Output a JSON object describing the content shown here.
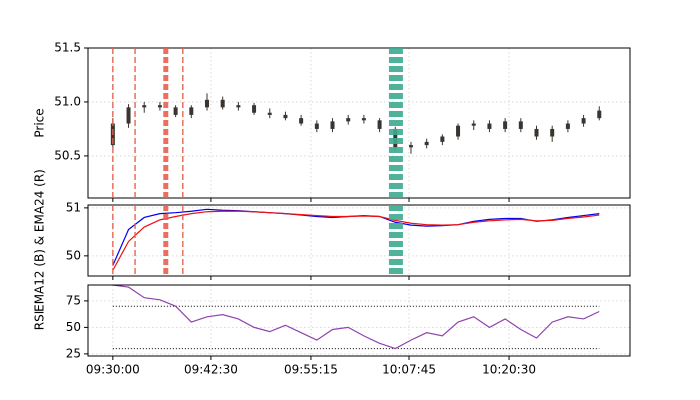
{
  "chart_data": [
    {
      "type": "candlestick",
      "ylabel": "Price",
      "x": [
        "09:30:00",
        "09:32:00",
        "09:34:00",
        "09:36:00",
        "09:38:00",
        "09:40:00",
        "09:42:00",
        "09:44:00",
        "09:46:00",
        "09:48:00",
        "09:50:00",
        "09:52:00",
        "09:54:00",
        "09:56:00",
        "09:58:00",
        "10:00:00",
        "10:02:00",
        "10:04:00",
        "10:06:00",
        "10:08:00",
        "10:10:00",
        "10:12:00",
        "10:14:00",
        "10:16:00",
        "10:18:00",
        "10:20:00",
        "10:22:00",
        "10:24:00",
        "10:26:00",
        "10:28:00",
        "10:30:00",
        "10:32:00"
      ],
      "open": [
        50.6,
        50.8,
        50.95,
        50.97,
        50.95,
        50.88,
        50.95,
        51.02,
        50.95,
        50.97,
        50.9,
        50.88,
        50.85,
        50.8,
        50.75,
        50.82,
        50.85,
        50.83,
        50.75,
        50.58,
        50.6,
        50.63,
        50.68,
        50.78,
        50.8,
        50.75,
        50.82,
        50.75,
        50.68,
        50.75,
        50.8,
        50.85
      ],
      "high": [
        50.85,
        50.98,
        51.0,
        51.0,
        50.97,
        50.97,
        51.08,
        51.05,
        51.0,
        50.99,
        50.94,
        50.91,
        50.88,
        50.83,
        50.85,
        50.88,
        50.88,
        50.85,
        50.77,
        50.63,
        50.66,
        50.7,
        50.8,
        50.83,
        50.83,
        50.85,
        50.85,
        50.78,
        50.78,
        50.83,
        50.88,
        50.96
      ],
      "low": [
        50.58,
        50.76,
        50.9,
        50.92,
        50.86,
        50.85,
        50.92,
        50.93,
        50.92,
        50.88,
        50.85,
        50.83,
        50.78,
        50.72,
        50.72,
        50.79,
        50.8,
        50.72,
        50.55,
        50.52,
        50.57,
        50.6,
        50.65,
        50.74,
        50.72,
        50.72,
        50.72,
        50.65,
        50.63,
        50.72,
        50.77,
        50.83
      ],
      "close": [
        50.8,
        50.95,
        50.97,
        50.95,
        50.88,
        50.95,
        51.02,
        50.95,
        50.97,
        50.9,
        50.88,
        50.85,
        50.8,
        50.75,
        50.82,
        50.85,
        50.83,
        50.75,
        50.58,
        50.6,
        50.63,
        50.68,
        50.78,
        50.8,
        50.75,
        50.82,
        50.75,
        50.68,
        50.75,
        50.8,
        50.85,
        50.92
      ],
      "color": "#3a3530",
      "vlines": [
        {
          "x": "09:30:00",
          "color": "#e8604c",
          "width": 1.5
        },
        {
          "x": "09:32:50",
          "color": "#e8604c",
          "width": 1.5
        },
        {
          "x": "09:36:45",
          "color": "#e8604c",
          "width": 5
        },
        {
          "x": "09:38:55",
          "color": "#e8604c",
          "width": 1.5
        },
        {
          "x": "10:06:05",
          "color": "#3dab91",
          "width": 14
        }
      ],
      "xlim": [
        "09:26:50",
        "10:35:55"
      ],
      "xticks": [
        "09:30:00",
        "09:42:30",
        "09:55:15",
        "10:07:45",
        "10:20:30"
      ],
      "ylim": [
        50.11,
        51.5
      ],
      "yticks": [
        {
          "value": 50.5,
          "label": "50.5"
        },
        {
          "value": 51.0,
          "label": "51.0"
        },
        {
          "value": 51.5,
          "label": "51.5"
        }
      ],
      "grid": true
    },
    {
      "type": "line",
      "ylabel": "EMA12 (B) & EMA24 (R)",
      "x": [
        "09:30:00",
        "09:32:00",
        "09:34:00",
        "09:36:00",
        "09:38:00",
        "09:40:00",
        "09:42:00",
        "09:44:00",
        "09:46:00",
        "09:48:00",
        "09:50:00",
        "09:52:00",
        "09:54:00",
        "09:56:00",
        "09:58:00",
        "10:00:00",
        "10:02:00",
        "10:04:00",
        "10:06:00",
        "10:08:00",
        "10:10:00",
        "10:12:00",
        "10:14:00",
        "10:16:00",
        "10:18:00",
        "10:20:00",
        "10:22:00",
        "10:24:00",
        "10:26:00",
        "10:28:00",
        "10:30:00",
        "10:32:00"
      ],
      "series": [
        {
          "color": "#0000ee",
          "values": [
            49.8,
            50.55,
            50.8,
            50.88,
            50.9,
            50.93,
            50.97,
            50.95,
            50.94,
            50.92,
            50.9,
            50.88,
            50.85,
            50.82,
            50.8,
            50.82,
            50.84,
            50.82,
            50.7,
            50.64,
            50.62,
            50.63,
            50.65,
            50.72,
            50.76,
            50.78,
            50.78,
            50.72,
            50.75,
            50.8,
            50.84,
            50.88
          ]
        },
        {
          "color": "#ee1010",
          "values": [
            49.7,
            50.3,
            50.6,
            50.75,
            50.82,
            50.88,
            50.92,
            50.93,
            50.93,
            50.92,
            50.9,
            50.88,
            50.86,
            50.84,
            50.82,
            50.82,
            50.83,
            50.82,
            50.74,
            50.68,
            50.65,
            50.64,
            50.65,
            50.7,
            50.73,
            50.75,
            50.76,
            50.73,
            50.74,
            50.78,
            50.81,
            50.85
          ]
        }
      ],
      "xlim": [
        "09:26:50",
        "10:35:55"
      ],
      "xticks": [
        "09:30:00",
        "09:42:30",
        "09:55:15",
        "10:07:45",
        "10:20:30"
      ],
      "ylim": [
        49.58,
        51.06
      ],
      "yticks": [
        50,
        51
      ],
      "grid": true
    },
    {
      "type": "line",
      "ylabel": "RSI",
      "x": [
        "09:30:00",
        "09:32:00",
        "09:34:00",
        "09:36:00",
        "09:38:00",
        "09:40:00",
        "09:42:00",
        "09:44:00",
        "09:46:00",
        "09:48:00",
        "09:50:00",
        "09:52:00",
        "09:54:00",
        "09:56:00",
        "09:58:00",
        "10:00:00",
        "10:02:00",
        "10:04:00",
        "10:06:00",
        "10:08:00",
        "10:10:00",
        "10:12:00",
        "10:14:00",
        "10:16:00",
        "10:18:00",
        "10:20:00",
        "10:22:00",
        "10:24:00",
        "10:26:00",
        "10:28:00",
        "10:30:00",
        "10:32:00"
      ],
      "series": [
        {
          "color": "#8e44ad",
          "values": [
            90,
            88,
            78,
            76,
            70,
            55,
            60,
            62,
            58,
            50,
            46,
            52,
            45,
            38,
            48,
            50,
            42,
            35,
            30,
            38,
            45,
            42,
            55,
            60,
            50,
            58,
            48,
            40,
            55,
            60,
            58,
            65
          ]
        }
      ],
      "hlines": [
        70,
        30
      ],
      "xlim": [
        "09:26:50",
        "10:35:55"
      ],
      "xticks": [
        "09:30:00",
        "09:42:30",
        "09:55:15",
        "10:07:45",
        "10:20:30"
      ],
      "ylim": [
        23,
        90
      ],
      "yticks": [
        25,
        50,
        75
      ],
      "grid": true
    }
  ]
}
